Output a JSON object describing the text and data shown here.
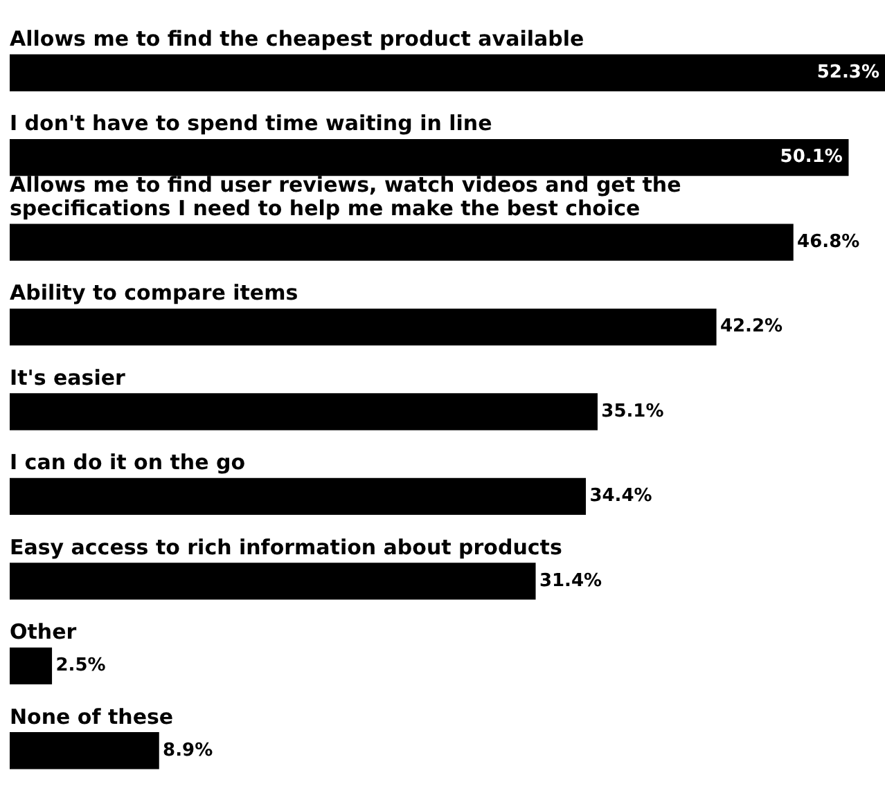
{
  "chart_data": {
    "type": "bar",
    "orientation": "horizontal",
    "categories": [
      "Allows me to find the cheapest product available",
      "I don't have to spend time waiting in line",
      "Allows me to find user reviews, watch videos and get the specifications I need to help me make the best choice",
      "Ability to compare items",
      "It's easier",
      "I can do it on the go",
      "Easy access to rich information about products",
      "Other",
      "None of these"
    ],
    "values": [
      52.3,
      50.1,
      46.8,
      42.2,
      35.1,
      34.4,
      31.4,
      2.5,
      8.9
    ],
    "value_labels": [
      "52.3%",
      "50.1%",
      "46.8%",
      "42.2%",
      "35.1%",
      "34.4%",
      "31.4%",
      "2.5%",
      "8.9%"
    ],
    "color": "#000000"
  }
}
